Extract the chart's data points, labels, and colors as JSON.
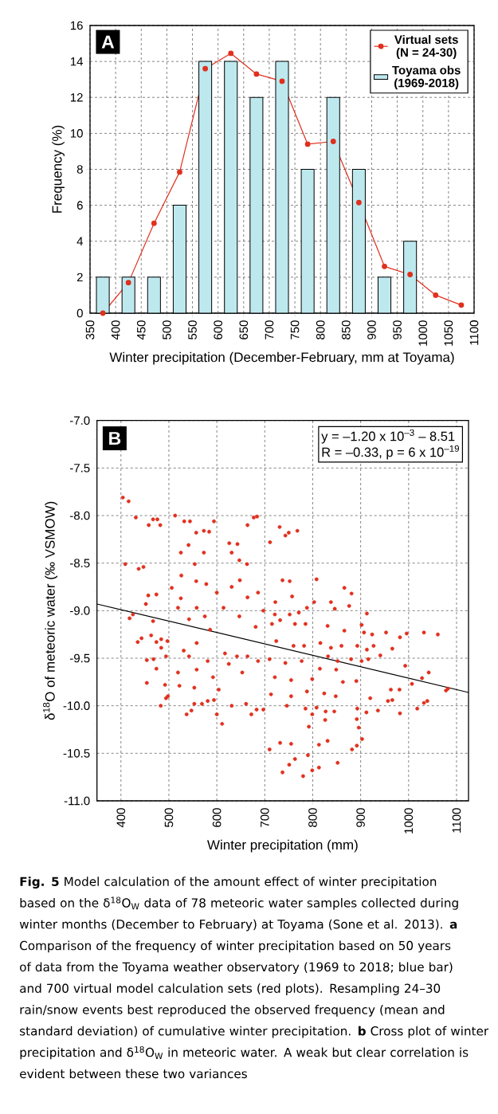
{
  "chart_data": [
    {
      "type": "bar",
      "xlabel": "Winter precipitation (December-February, mm at Toyama)",
      "ylabel": "Frequency (%)",
      "x": [
        375,
        425,
        475,
        525,
        575,
        625,
        675,
        725,
        775,
        825,
        875,
        925,
        975
      ],
      "series": [
        {
          "name": "Virtual sets (N = 24-30)",
          "type": "line",
          "color": "#e0301e",
          "marker": "circle",
          "x": [
            375,
            425,
            475,
            525,
            575,
            625,
            675,
            725,
            775,
            825,
            875,
            925,
            975,
            1025,
            1075
          ],
          "values": [
            0,
            1.7,
            5,
            7.85,
            13.6,
            14.45,
            13.3,
            12.9,
            9.4,
            9.55,
            6.15,
            2.6,
            2.15,
            1.0,
            0.45
          ]
        },
        {
          "name": "Toyama obs (1969-2018)",
          "color": "#bde9ee",
          "values": [
            2,
            2,
            2,
            6,
            14,
            14,
            12,
            14,
            8,
            12,
            8,
            2,
            4
          ]
        }
      ],
      "xlim": [
        350,
        1100
      ],
      "xticks": [
        350,
        400,
        450,
        500,
        550,
        600,
        650,
        700,
        750,
        800,
        850,
        900,
        950,
        1000,
        1050,
        1100
      ],
      "ylim": [
        0,
        16
      ],
      "yticks": [
        0,
        2,
        4,
        6,
        8,
        10,
        12,
        14,
        16
      ],
      "grid": true,
      "legend": "top right",
      "annotations": [
        "A"
      ]
    },
    {
      "type": "scatter",
      "xlabel": "Winter precipitation (mm)",
      "ylabel": "δ$^{18}$O of meteoric water (‰ VSMOW)",
      "series": [
        {
          "color": "#e0301e",
          "marker": "circle",
          "x": [
            404,
            416,
            431,
            458,
            467,
            476,
            482,
            513,
            532,
            544,
            557,
            573,
            584,
            594,
            664,
            677,
            684,
            409,
            437,
            447,
            541,
            525,
            573,
            554,
            626,
            643,
            631,
            647,
            663,
            526,
            557,
            578,
            648,
            452,
            457,
            474,
            418,
            425,
            467,
            435,
            443,
            463,
            474,
            484,
            497,
            484,
            454,
            468,
            474,
            494,
            454,
            492,
            483,
            494,
            498,
            522,
            537,
            547,
            553,
            553,
            569,
            581,
            594,
            600,
            611,
            604,
            631,
            661,
            672,
            683,
            697,
            506,
            525,
            519,
            542,
            558,
            575,
            586,
            600,
            614,
            631,
            647,
            664,
            686,
            697,
            681,
            558,
            531,
            542,
            519,
            558,
            581,
            592,
            617,
            625,
            642,
            664,
            653,
            686,
            731,
            743,
            750,
            768,
            711,
            737,
            752,
            808,
            866,
            881,
            757,
            722,
            803,
            838,
            846,
            876,
            913,
            721,
            752,
            771,
            788,
            715,
            732,
            763,
            785,
            831,
            866,
            902,
            907,
            924,
            953,
            982,
            996,
            1032,
            1061,
            724,
            760,
            782,
            816,
            838,
            860,
            893,
            913,
            927,
            941,
            966,
            710,
            743,
            777,
            832,
            852,
            880,
            902,
            916,
            993,
            815,
            849,
            721,
            755,
            799,
            863,
            891,
            1007,
            1028,
            1042,
            1078,
            1082,
            713,
            755,
            788,
            824,
            848,
            963,
            981,
            920,
            957,
            966,
            1039,
            1032,
            746,
            785,
            808,
            827,
            845,
            893,
            912,
            936,
            982,
            1018,
            799,
            826,
            892,
            896,
            792,
            903,
            892,
            882,
            831,
            813,
            755,
            732,
            710,
            790,
            763,
            751,
            737,
            780,
            799,
            813,
            852
          ],
          "values": [
            -7.81,
            -7.85,
            -8.02,
            -8.1,
            -8.04,
            -8.04,
            -8.1,
            -8.0,
            -8.06,
            -8.06,
            -8.18,
            -8.16,
            -8.17,
            -8.06,
            -8.1,
            -8.02,
            -8.01,
            -8.51,
            -8.56,
            -8.54,
            -8.31,
            -8.39,
            -8.39,
            -8.51,
            -8.29,
            -8.3,
            -8.39,
            -8.47,
            -8.51,
            -8.63,
            -8.69,
            -8.72,
            -8.68,
            -8.93,
            -8.84,
            -8.83,
            -9.08,
            -9.04,
            -9.11,
            -9.33,
            -9.29,
            -9.26,
            -9.33,
            -9.3,
            -9.32,
            -9.39,
            -9.52,
            -9.51,
            -9.61,
            -9.48,
            -9.76,
            -9.78,
            -10.0,
            -9.92,
            -9.9,
            -9.79,
            -10.09,
            -10.05,
            -9.98,
            -9.81,
            -9.98,
            -9.95,
            -9.94,
            -10.09,
            -10.19,
            -9.83,
            -10.0,
            -9.98,
            -10.09,
            -10.04,
            -10.04,
            -8.76,
            -8.87,
            -8.97,
            -9.09,
            -8.97,
            -9.06,
            -9.2,
            -8.81,
            -8.97,
            -8.75,
            -9.06,
            -8.86,
            -8.81,
            -9.0,
            -9.17,
            -9.34,
            -9.42,
            -9.48,
            -9.65,
            -9.62,
            -9.53,
            -9.7,
            -9.45,
            -9.56,
            -9.48,
            -9.48,
            -9.65,
            -9.53,
            -8.12,
            -8.21,
            -8.18,
            -8.16,
            -8.28,
            -8.68,
            -8.69,
            -8.67,
            -8.76,
            -8.82,
            -8.85,
            -8.91,
            -8.91,
            -8.91,
            -8.98,
            -8.95,
            -9.03,
            -9.04,
            -9.04,
            -9.02,
            -8.97,
            -9.14,
            -9.1,
            -9.14,
            -9.14,
            -9.16,
            -9.21,
            -9.15,
            -9.23,
            -9.25,
            -9.23,
            -9.28,
            -9.24,
            -9.23,
            -9.25,
            -9.32,
            -9.37,
            -9.37,
            -9.34,
            -9.39,
            -9.37,
            -9.37,
            -9.41,
            -9.37,
            -9.47,
            -9.4,
            -9.51,
            -9.55,
            -9.53,
            -9.48,
            -9.53,
            -9.51,
            -9.53,
            -9.51,
            -9.58,
            -9.61,
            -9.62,
            -9.7,
            -9.73,
            -9.72,
            -9.75,
            -9.74,
            -9.77,
            -9.71,
            -9.65,
            -9.84,
            -9.82,
            -9.88,
            -9.9,
            -9.85,
            -9.87,
            -9.9,
            -9.83,
            -9.83,
            -9.92,
            -9.95,
            -9.94,
            -9.95,
            -9.97,
            -10.0,
            -10.03,
            -10.02,
            -10.06,
            -10.06,
            -10.03,
            -10.07,
            -10.05,
            -10.08,
            -10.03,
            -10.09,
            -10.15,
            -10.14,
            -10.23,
            -10.22,
            -10.35,
            -10.42,
            -10.46,
            -10.37,
            -10.41,
            -10.4,
            -10.39,
            -10.46,
            -10.52,
            -10.56,
            -10.62,
            -10.7,
            -10.74,
            -10.68,
            -10.65,
            -10.6
          ]
        },
        {
          "type": "line",
          "color": "#000000",
          "marker": "none",
          "x": [
            350,
            1125
          ],
          "values": [
            -8.93,
            -9.86
          ]
        }
      ],
      "xlim": [
        350,
        1125
      ],
      "xticks": [
        400,
        500,
        600,
        700,
        800,
        900,
        1000,
        1100
      ],
      "ylim": [
        -11,
        -7
      ],
      "yticks": [
        {
          "value": -11,
          "label": "-11.0"
        },
        -10.5,
        {
          "value": -10,
          "label": "-10.0"
        },
        -9.5,
        {
          "value": -9,
          "label": "-9.0"
        },
        -8.5,
        {
          "value": -8,
          "label": "-8.0"
        },
        -7.5,
        {
          "value": -7,
          "label": "-7.0"
        }
      ],
      "grid": true,
      "annotations": [
        "B",
        "y = –1.20 x 10$^{–3}$ – 8.51",
        "R = –0.33, p = 6 x 10$^{–19}$",
        "**Fig. 5** Model calculation of the amount effect of winter precipitation based on the δ$^{18}$O$_{W}$ data of 78 meteoric water samples collected during winter months (December to February) at Toyama (Sone et al. 2013). **a** Comparison of the frequency of winter precipitation based on 50 years of data from the Toyama weather observatory (1969 to 2018; blue bar) and 700 virtual model calculation sets (red plots). Resampling 24–30 rain/snow events best reproduced the observed frequency (mean and standard deviation) of cumulative winter precipitation. **b** Cross plot of winter precipitation and δ$^{18}$O$_{W}$ in meteoric water. A weak but clear correlation is evident between these two variances"
      ]
    }
  ]
}
